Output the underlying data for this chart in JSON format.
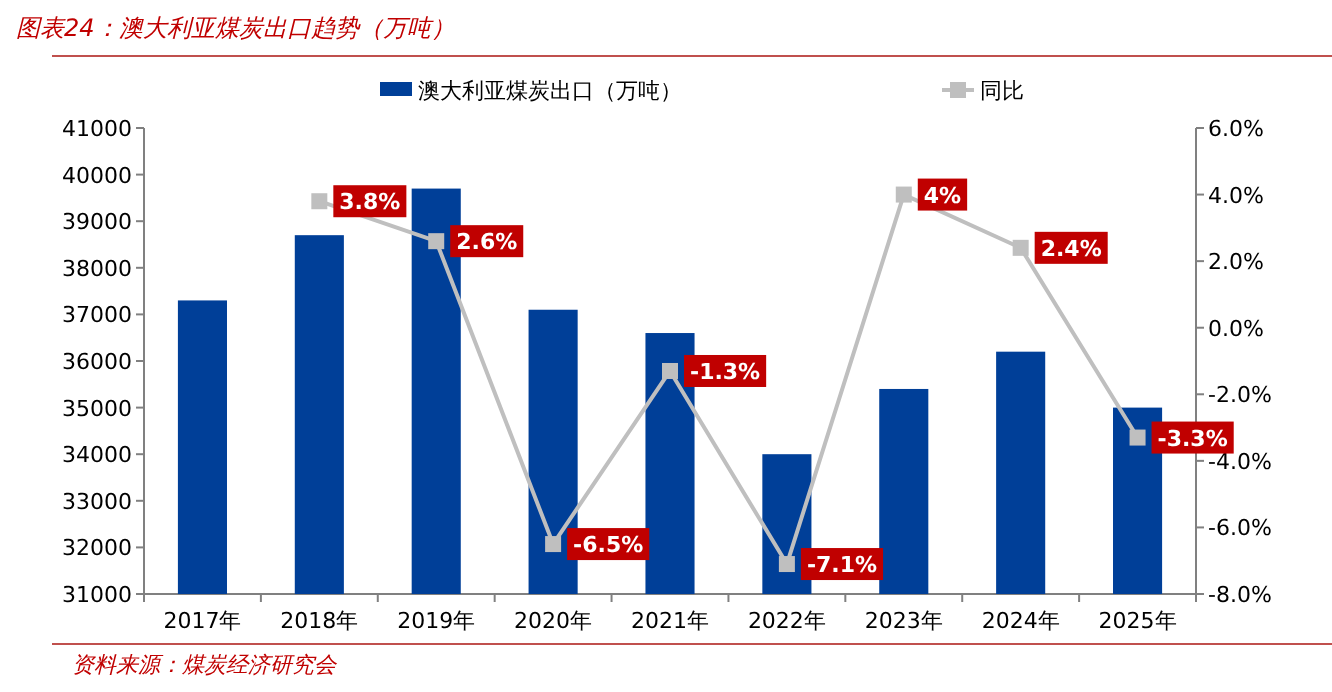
{
  "chart_data": {
    "type": "bar",
    "title": "图表24：澳大利亚煤炭出口趋势（万吨）",
    "categories": [
      "2017年",
      "2018年",
      "2019年",
      "2020年",
      "2021年",
      "2022年",
      "2023年",
      "2024年",
      "2025年"
    ],
    "series": [
      {
        "name": "澳大利亚煤炭出口（万吨）",
        "color": "#003f98",
        "values": [
          37300,
          38700,
          39700,
          37100,
          36600,
          34000,
          35400,
          36200,
          35000
        ]
      },
      {
        "name": "同比",
        "type": "line",
        "axis": "y2",
        "color": "#bfbfbf",
        "values": [
          null,
          3.8,
          2.6,
          -6.5,
          -1.3,
          -7.1,
          4,
          2.4,
          -3.3
        ],
        "value_labels": [
          null,
          "3.8%",
          "2.6%",
          "-6.5%",
          "-1.3%",
          "-7.1%",
          "4%",
          "2.4%",
          "-3.3%"
        ]
      }
    ],
    "ylim": [
      31000,
      41000
    ],
    "yticks": [
      31000,
      32000,
      33000,
      34000,
      35000,
      36000,
      37000,
      38000,
      39000,
      40000,
      41000
    ],
    "y2lim": [
      -8,
      6
    ],
    "y2ticks": [
      {
        "value": -8,
        "label": "-8.0%"
      },
      {
        "value": -6,
        "label": "-6.0%"
      },
      {
        "value": -4,
        "label": "-4.0%"
      },
      {
        "value": -2,
        "label": "-2.0%"
      },
      {
        "value": 0,
        "label": "0.0%"
      },
      {
        "value": 2,
        "label": "2.0%"
      },
      {
        "value": 4,
        "label": "4.0%"
      },
      {
        "value": 6,
        "label": "6.0%"
      }
    ],
    "marker": "square",
    "legend": "top",
    "grid": false,
    "annotations": [
      "资料来源：煤炭经济研究会"
    ]
  }
}
